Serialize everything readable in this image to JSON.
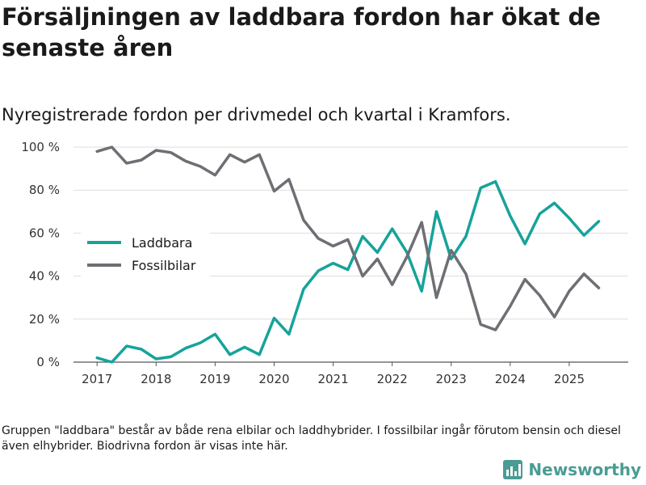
{
  "title": "Försäljningen av laddbara fordon har ökat de senaste åren",
  "subtitle": "Nyregistrerade fordon per drivmedel och kvartal i Kramfors.",
  "footnote": "Gruppen \"laddbara\" består av både rena elbilar och laddhybrider. I fossilbilar ingår förutom bensin och diesel även elhybrider. Biodrivna fordon är visas inte här.",
  "brand": {
    "name": "Newsworthy",
    "icon": "newsworthy-logo-icon",
    "color": "#4a9c93"
  },
  "chart_data": {
    "type": "line",
    "title": "Försäljningen av laddbara fordon har ökat de senaste åren",
    "subtitle": "Nyregistrerade fordon per drivmedel och kvartal i Kramfors.",
    "xlabel": "",
    "ylabel": "",
    "xlim": [
      2016.6,
      2026.0
    ],
    "ylim": [
      0,
      100
    ],
    "x_ticks": [
      2017,
      2018,
      2019,
      2020,
      2021,
      2022,
      2023,
      2024,
      2025
    ],
    "x_tick_labels": [
      "2017",
      "2018",
      "2019",
      "2020",
      "2021",
      "2022",
      "2023",
      "2024",
      "2025"
    ],
    "y_ticks": [
      0,
      20,
      40,
      60,
      80,
      100
    ],
    "y_tick_labels": [
      "0 %",
      "20 %",
      "40 %",
      "60 %",
      "80 %",
      "100 %"
    ],
    "grid": true,
    "legend_position": "left-middle",
    "x": [
      2017.0,
      2017.25,
      2017.5,
      2017.75,
      2018.0,
      2018.25,
      2018.5,
      2018.75,
      2019.0,
      2019.25,
      2019.5,
      2019.75,
      2020.0,
      2020.25,
      2020.5,
      2020.75,
      2021.0,
      2021.25,
      2021.5,
      2021.75,
      2022.0,
      2022.25,
      2022.5,
      2022.75,
      2023.0,
      2023.25,
      2023.5,
      2023.75,
      2024.0,
      2024.25,
      2024.5,
      2024.75,
      2025.0,
      2025.25,
      2025.5
    ],
    "series": [
      {
        "name": "Laddbara",
        "color": "#16a39a",
        "values": [
          2,
          0,
          7.5,
          6,
          1.5,
          2.5,
          6.5,
          9,
          13,
          3.5,
          7,
          3.5,
          20.5,
          13,
          34,
          42.5,
          46,
          43,
          58.5,
          51,
          62,
          51,
          33,
          70,
          48,
          58.5,
          81,
          84,
          68,
          55,
          69,
          74,
          67,
          59,
          65.5
        ]
      },
      {
        "name": "Fossilbilar",
        "color": "#6f6e74",
        "values": [
          98,
          100,
          92.5,
          94,
          98.5,
          97.5,
          93.5,
          91,
          87,
          96.5,
          93,
          96.5,
          79.5,
          85,
          66,
          57.5,
          54,
          57,
          40,
          48,
          36,
          49,
          65,
          30,
          52,
          41,
          17.5,
          15,
          26,
          38.5,
          31,
          21,
          33,
          41,
          34.5
        ]
      }
    ]
  }
}
